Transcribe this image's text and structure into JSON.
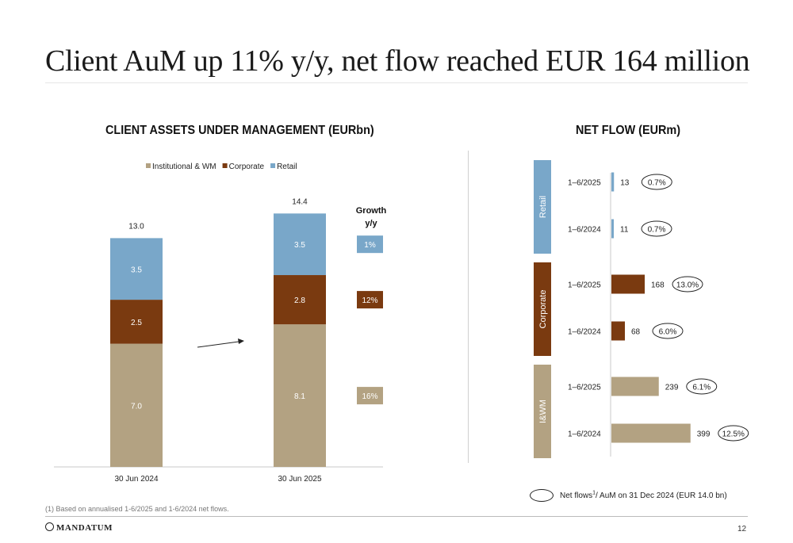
{
  "title": "Client AuM up 11%  y/y, net flow reached EUR 164 million",
  "colors": {
    "institutional": "#b3a282",
    "corporate": "#7a3a10",
    "retail": "#79a7c9"
  },
  "chart_data": [
    {
      "type": "bar",
      "title": "CLIENT ASSETS UNDER MANAGEMENT (EURbn)",
      "stacked": true,
      "categories": [
        "30 Jun 2024",
        "30 Jun 2025"
      ],
      "series": [
        {
          "name": "Institutional & WM",
          "color": "#b3a282",
          "values": [
            7.0,
            8.1
          ],
          "labels": [
            "7.0",
            "8.1"
          ]
        },
        {
          "name": "Corporate",
          "color": "#7a3a10",
          "values": [
            2.5,
            2.8
          ],
          "labels": [
            "2.5",
            "2.8"
          ]
        },
        {
          "name": "Retail",
          "color": "#79a7c9",
          "values": [
            3.5,
            3.5
          ],
          "labels": [
            "3.5",
            "3.5"
          ]
        }
      ],
      "totals": [
        13.0,
        14.4
      ],
      "total_labels": [
        "13.0",
        "14.4"
      ],
      "legend_position": "top",
      "growth_header": "Growth y/y",
      "growth": [
        {
          "series": "Retail",
          "label": "1%"
        },
        {
          "series": "Corporate",
          "label": "12%"
        },
        {
          "series": "Institutional & WM",
          "label": "16%"
        }
      ],
      "grid": false
    },
    {
      "type": "bar",
      "orientation": "horizontal",
      "title": "NET FLOW (EURm)",
      "groups": [
        {
          "name": "Retail",
          "color": "#79a7c9",
          "rows": [
            {
              "label": "1–6/2025",
              "value": 13,
              "value_label": "13",
              "ratio": "0.7%"
            },
            {
              "label": "1–6/2024",
              "value": 11,
              "value_label": "11",
              "ratio": "0.7%"
            }
          ]
        },
        {
          "name": "Corporate",
          "color": "#7a3a10",
          "rows": [
            {
              "label": "1–6/2025",
              "value": 168,
              "value_label": "168",
              "ratio": "13.0%"
            },
            {
              "label": "1–6/2024",
              "value": 68,
              "value_label": "68",
              "ratio": "6.0%"
            }
          ]
        },
        {
          "name": "I&WM",
          "color": "#b3a282",
          "rows": [
            {
              "label": "1–6/2025",
              "value": 239,
              "value_label": "239",
              "ratio": "6.1%"
            },
            {
              "label": "1–6/2024",
              "value": 399,
              "value_label": "399",
              "ratio": "12.5%"
            }
          ]
        }
      ],
      "legend_prefix": "Net flows",
      "legend_sup": "1",
      "legend_suffix": "/ AuM on 31 Dec 2024 (EUR 14.0 bn)"
    }
  ],
  "footnote": "(1) Based on annualised 1-6/2025 and 1-6/2024 net flows.",
  "logo_text": "MANDATUM",
  "page_number": "12"
}
